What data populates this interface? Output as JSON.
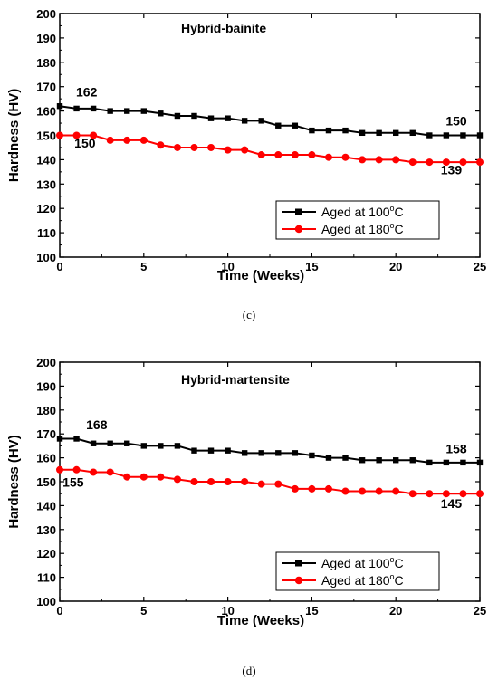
{
  "chart_data": [
    {
      "type": "line",
      "caption": "(c)",
      "title": "Hybrid-bainite",
      "xlabel": "Time (Weeks)",
      "ylabel": "Hardness (HV)",
      "xlim": [
        0,
        25
      ],
      "ylim": [
        100,
        200
      ],
      "xticks": [
        0,
        5,
        10,
        15,
        20,
        25
      ],
      "yticks": [
        100,
        110,
        120,
        130,
        140,
        150,
        160,
        170,
        180,
        190,
        200
      ],
      "grid": false,
      "legend_position": "bottom-right",
      "x": [
        0,
        1,
        2,
        3,
        4,
        5,
        6,
        7,
        8,
        9,
        10,
        11,
        12,
        13,
        14,
        15,
        16,
        17,
        18,
        19,
        20,
        21,
        22,
        23,
        24,
        25
      ],
      "series": [
        {
          "name": "Aged at 100°C",
          "legend_main": "Aged at 100",
          "legend_sup": "o",
          "legend_tail": "C",
          "color": "#000000",
          "marker": "square",
          "values": [
            162,
            161,
            161,
            160,
            160,
            160,
            159,
            158,
            158,
            157,
            157,
            156,
            156,
            154,
            154,
            152,
            152,
            152,
            151,
            151,
            151,
            151,
            150,
            150,
            150,
            150
          ]
        },
        {
          "name": "Aged at 180°C",
          "legend_main": "Aged at 180",
          "legend_sup": "o",
          "legend_tail": "C",
          "color": "#ff0000",
          "marker": "circle",
          "values": [
            150,
            150,
            150,
            148,
            148,
            148,
            146,
            145,
            145,
            145,
            144,
            144,
            142,
            142,
            142,
            142,
            141,
            141,
            140,
            140,
            140,
            139,
            139,
            139,
            139,
            139
          ]
        }
      ],
      "annotations": [
        {
          "text": "162",
          "x": 1.6,
          "y": 166
        },
        {
          "text": "150",
          "x": 1.5,
          "y": 145
        },
        {
          "text": "150",
          "x": 23.6,
          "y": 154
        },
        {
          "text": "139",
          "x": 23.3,
          "y": 134
        }
      ]
    },
    {
      "type": "line",
      "caption": "(d)",
      "title": "Hybrid-martensite",
      "xlabel": "Time (Weeks)",
      "ylabel": "Hardness (HV)",
      "xlim": [
        0,
        25
      ],
      "ylim": [
        100,
        200
      ],
      "xticks": [
        0,
        5,
        10,
        15,
        20,
        25
      ],
      "yticks": [
        100,
        110,
        120,
        130,
        140,
        150,
        160,
        170,
        180,
        190,
        200
      ],
      "grid": false,
      "legend_position": "bottom-right",
      "x": [
        0,
        1,
        2,
        3,
        4,
        5,
        6,
        7,
        8,
        9,
        10,
        11,
        12,
        13,
        14,
        15,
        16,
        17,
        18,
        19,
        20,
        21,
        22,
        23,
        24,
        25
      ],
      "series": [
        {
          "name": "Aged at 100°C",
          "legend_main": "Aged at 100",
          "legend_sup": "o",
          "legend_tail": "C",
          "color": "#000000",
          "marker": "square",
          "values": [
            168,
            168,
            166,
            166,
            166,
            165,
            165,
            165,
            163,
            163,
            163,
            162,
            162,
            162,
            162,
            161,
            160,
            160,
            159,
            159,
            159,
            159,
            158,
            158,
            158,
            158
          ]
        },
        {
          "name": "Aged at 180°C",
          "legend_main": "Aged at 180",
          "legend_sup": "o",
          "legend_tail": "C",
          "color": "#ff0000",
          "marker": "circle",
          "values": [
            155,
            155,
            154,
            154,
            152,
            152,
            152,
            151,
            150,
            150,
            150,
            150,
            149,
            149,
            147,
            147,
            147,
            146,
            146,
            146,
            146,
            145,
            145,
            145,
            145,
            145
          ]
        }
      ],
      "annotations": [
        {
          "text": "168",
          "x": 2.2,
          "y": 172
        },
        {
          "text": "155",
          "x": 0.8,
          "y": 148
        },
        {
          "text": "158",
          "x": 23.6,
          "y": 162
        },
        {
          "text": "145",
          "x": 23.3,
          "y": 139
        }
      ]
    }
  ]
}
